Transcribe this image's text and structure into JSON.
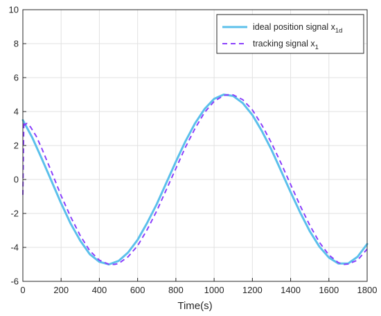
{
  "chart_data": {
    "type": "line",
    "xlabel": "Time(s)",
    "ylabel": "",
    "xlim": [
      0,
      1800
    ],
    "ylim": [
      -6,
      10
    ],
    "xticks": [
      0,
      200,
      400,
      600,
      800,
      1000,
      1200,
      1400,
      1600,
      1800
    ],
    "yticks": [
      -6,
      -4,
      -2,
      0,
      2,
      4,
      6,
      8,
      10
    ],
    "grid": true,
    "legend_position": "top-right",
    "series": [
      {
        "name": "ideal position signal x",
        "name_subscript": "1d",
        "style": "solid",
        "color": "#5bc0eb",
        "x": [
          0,
          50,
          100,
          150,
          200,
          250,
          300,
          350,
          400,
          450,
          500,
          550,
          600,
          650,
          700,
          750,
          800,
          850,
          900,
          950,
          1000,
          1050,
          1100,
          1150,
          1200,
          1250,
          1300,
          1350,
          1400,
          1450,
          1500,
          1550,
          1600,
          1650,
          1700,
          1750,
          1800
        ],
        "y": [
          3.5,
          2.45,
          1.2,
          -0.1,
          -1.4,
          -2.6,
          -3.6,
          -4.4,
          -4.85,
          -5.0,
          -4.8,
          -4.3,
          -3.55,
          -2.55,
          -1.45,
          -0.2,
          1.05,
          2.25,
          3.3,
          4.15,
          4.75,
          5.0,
          4.92,
          4.5,
          3.8,
          2.85,
          1.75,
          0.5,
          -0.75,
          -1.95,
          -3.05,
          -3.95,
          -4.6,
          -4.95,
          -4.95,
          -4.55,
          -3.8
        ]
      },
      {
        "name": "tracking signal x",
        "name_subscript": "1",
        "style": "dashed",
        "color": "#8a3ffc",
        "x": [
          0,
          5,
          10,
          20,
          40,
          70,
          100,
          150,
          200,
          250,
          300,
          350,
          400,
          450,
          480,
          500,
          550,
          600,
          650,
          700,
          750,
          800,
          850,
          900,
          950,
          1000,
          1050,
          1080,
          1100,
          1150,
          1200,
          1250,
          1300,
          1350,
          1400,
          1450,
          1500,
          1550,
          1600,
          1650,
          1680,
          1700,
          1750,
          1800
        ],
        "y": [
          -0.9,
          3.4,
          3.2,
          3.3,
          3.1,
          2.55,
          1.8,
          0.45,
          -0.95,
          -2.2,
          -3.3,
          -4.2,
          -4.75,
          -5.0,
          -5.0,
          -4.95,
          -4.55,
          -3.9,
          -2.95,
          -1.85,
          -0.6,
          0.65,
          1.9,
          3.0,
          3.95,
          4.6,
          4.95,
          5.0,
          4.98,
          4.7,
          4.1,
          3.2,
          2.15,
          0.95,
          -0.3,
          -1.55,
          -2.7,
          -3.7,
          -4.45,
          -4.9,
          -5.0,
          -4.98,
          -4.75,
          -4.1
        ]
      }
    ]
  }
}
